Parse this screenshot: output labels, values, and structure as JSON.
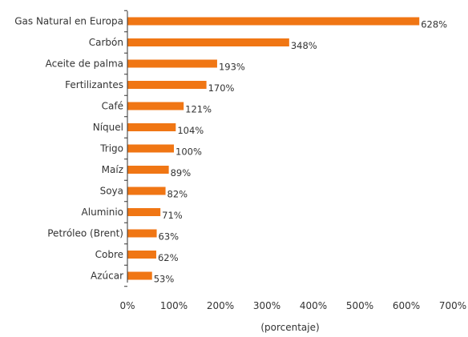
{
  "chart_data": {
    "type": "bar",
    "orientation": "horizontal",
    "categories": [
      "Gas Natural en Europa",
      "Carbón",
      "Aceite de palma",
      "Fertilizantes",
      "Café",
      "Níquel",
      "Trigo",
      "Maíz",
      "Soya",
      "Aluminio",
      "Petróleo (Brent)",
      "Cobre",
      "Azúcar"
    ],
    "values": [
      628,
      348,
      193,
      170,
      121,
      104,
      100,
      89,
      82,
      71,
      63,
      62,
      53
    ],
    "value_labels": [
      "628%",
      "348%",
      "193%",
      "170%",
      "121%",
      "104%",
      "100%",
      "89%",
      "82%",
      "71%",
      "63%",
      "62%",
      "53%"
    ],
    "xlim": [
      0,
      700
    ],
    "x_ticks": [
      0,
      100,
      200,
      300,
      400,
      500,
      600,
      700
    ],
    "x_tick_labels": [
      "0%",
      "100%",
      "200%",
      "300%",
      "400%",
      "500%",
      "600%",
      "700%"
    ],
    "xlabel": "(porcentaje)",
    "ylabel": "",
    "title": "",
    "grid": false,
    "legend": "none",
    "bar_color": "#F07614",
    "text_color": "#333333",
    "axis_color": "#333333"
  }
}
